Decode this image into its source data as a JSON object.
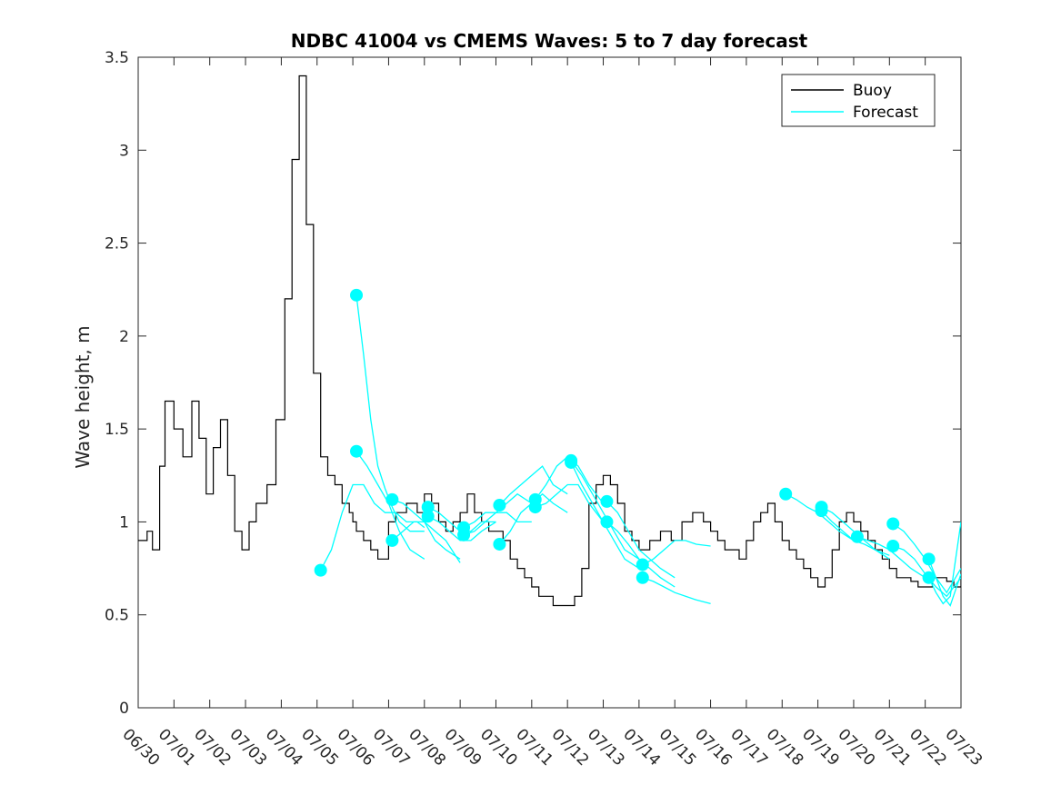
{
  "chart_data": {
    "type": "line",
    "title": "NDBC 41004 vs CMEMS Waves: 5 to 7 day forecast",
    "xlabel": "",
    "ylabel": "Wave height, m",
    "xlim": [
      "06/30",
      "07/23"
    ],
    "ylim": [
      0,
      3.5
    ],
    "x_tick_labels": [
      "06/30",
      "07/01",
      "07/02",
      "07/03",
      "07/04",
      "07/05",
      "07/06",
      "07/07",
      "07/08",
      "07/09",
      "07/10",
      "07/11",
      "07/12",
      "07/13",
      "07/14",
      "07/15",
      "07/16",
      "07/17",
      "07/18",
      "07/19",
      "07/20",
      "07/21",
      "07/22",
      "07/23"
    ],
    "y_tick_labels": [
      "0",
      "0.5",
      "1",
      "1.5",
      "2",
      "2.5",
      "3",
      "3.5"
    ],
    "grid": false,
    "legend_position": "top-right",
    "colors": {
      "buoy": "#000000",
      "forecast": "#00ffff"
    },
    "series": [
      {
        "name": "Buoy",
        "x_days": [
          0,
          0.25,
          0.4,
          0.6,
          0.75,
          1.0,
          1.25,
          1.5,
          1.7,
          1.9,
          2.1,
          2.3,
          2.5,
          2.7,
          2.9,
          3.1,
          3.3,
          3.6,
          3.85,
          4.1,
          4.3,
          4.5,
          4.7,
          4.9,
          5.1,
          5.3,
          5.5,
          5.7,
          5.9,
          6.0,
          6.1,
          6.3,
          6.5,
          6.7,
          7.0,
          7.2,
          7.5,
          7.8,
          8.0,
          8.2,
          8.4,
          8.6,
          8.8,
          9.0,
          9.2,
          9.4,
          9.6,
          9.8,
          10.0,
          10.2,
          10.4,
          10.6,
          10.8,
          11.0,
          11.2,
          11.4,
          11.6,
          11.8,
          12.0,
          12.2,
          12.4,
          12.6,
          12.8,
          13.0,
          13.2,
          13.4,
          13.6,
          13.8,
          14.0,
          14.3,
          14.6,
          14.9,
          15.2,
          15.5,
          15.8,
          16.0,
          16.2,
          16.4,
          16.6,
          16.8,
          17.0,
          17.2,
          17.4,
          17.6,
          17.8,
          18.0,
          18.2,
          18.4,
          18.6,
          18.8,
          19.0,
          19.2,
          19.4,
          19.6,
          19.8,
          20.0,
          20.2,
          20.4,
          20.6,
          20.8,
          21.0,
          21.2,
          21.4,
          21.6,
          21.8,
          22.0,
          22.2,
          22.4,
          22.6,
          22.8,
          23.0
        ],
        "values": [
          0.9,
          0.95,
          0.85,
          1.3,
          1.65,
          1.5,
          1.35,
          1.65,
          1.45,
          1.15,
          1.4,
          1.55,
          1.25,
          0.95,
          0.85,
          1.0,
          1.1,
          1.2,
          1.55,
          2.2,
          2.95,
          3.4,
          2.6,
          1.8,
          1.35,
          1.25,
          1.2,
          1.1,
          1.05,
          1.0,
          0.95,
          0.9,
          0.85,
          0.8,
          1.0,
          1.05,
          1.1,
          1.05,
          1.15,
          1.1,
          1.0,
          0.95,
          1.0,
          1.05,
          1.15,
          1.05,
          1.0,
          0.95,
          0.95,
          0.9,
          0.8,
          0.75,
          0.7,
          0.65,
          0.6,
          0.6,
          0.55,
          0.55,
          0.55,
          0.6,
          0.75,
          1.1,
          1.2,
          1.25,
          1.2,
          1.1,
          0.95,
          0.9,
          0.85,
          0.9,
          0.95,
          0.9,
          1.0,
          1.05,
          1.0,
          0.95,
          0.9,
          0.85,
          0.85,
          0.8,
          0.9,
          1.0,
          1.05,
          1.1,
          1.0,
          0.9,
          0.85,
          0.8,
          0.75,
          0.7,
          0.65,
          0.7,
          0.85,
          1.0,
          1.05,
          1.0,
          0.95,
          0.9,
          0.85,
          0.8,
          0.75,
          0.7,
          0.7,
          0.68,
          0.65,
          0.65,
          0.7,
          0.7,
          0.68,
          0.65,
          1.0
        ]
      },
      {
        "name": "Forecast",
        "x_days": [
          5.1,
          5.4,
          5.7,
          6.0,
          6.3,
          6.6,
          6.9,
          7.2,
          7.5,
          7.8,
          8.0
        ],
        "values": [
          0.74,
          0.85,
          1.05,
          1.2,
          1.2,
          1.1,
          1.05,
          1.05,
          1.0,
          1.0,
          0.97
        ]
      },
      {
        "x_days": [
          6.1,
          6.3,
          6.5,
          6.7,
          6.9,
          7.1,
          7.3,
          7.6,
          8.0
        ],
        "values": [
          2.22,
          1.9,
          1.55,
          1.3,
          1.18,
          1.08,
          1.0,
          0.95,
          0.95
        ]
      },
      {
        "x_days": [
          6.1,
          6.4,
          6.7,
          7.0,
          7.3,
          7.6,
          8.0
        ],
        "values": [
          1.38,
          1.3,
          1.2,
          1.1,
          0.95,
          0.85,
          0.8
        ]
      },
      {
        "x_days": [
          7.1,
          7.4,
          7.7,
          8.0,
          8.3,
          8.6,
          9.0
        ],
        "values": [
          1.12,
          1.1,
          1.05,
          1.0,
          0.9,
          0.85,
          0.8
        ]
      },
      {
        "x_days": [
          7.1,
          7.4,
          7.7,
          8.0,
          8.3,
          8.6,
          9.0
        ],
        "values": [
          0.9,
          0.95,
          1.0,
          1.0,
          0.95,
          0.9,
          0.78
        ]
      },
      {
        "x_days": [
          8.1,
          8.4,
          8.7,
          9.0,
          9.3,
          9.6,
          10.0
        ],
        "values": [
          1.08,
          1.05,
          1.0,
          0.95,
          0.95,
          1.0,
          1.0
        ]
      },
      {
        "x_days": [
          8.1,
          8.4,
          8.7,
          9.0,
          9.3,
          9.6,
          10.0
        ],
        "values": [
          1.03,
          1.0,
          0.95,
          0.9,
          0.9,
          0.95,
          1.0
        ]
      },
      {
        "x_days": [
          9.1,
          9.4,
          9.7,
          10.0,
          10.3,
          10.6,
          11.0
        ],
        "values": [
          0.97,
          1.0,
          1.05,
          1.05,
          1.1,
          1.15,
          1.1
        ]
      },
      {
        "x_days": [
          9.1,
          9.4,
          9.7,
          10.0,
          10.3,
          10.6,
          11.0
        ],
        "values": [
          0.93,
          0.95,
          1.0,
          1.05,
          1.05,
          1.0,
          1.0
        ]
      },
      {
        "x_days": [
          10.1,
          10.4,
          10.7,
          11.0,
          11.3,
          11.6,
          12.0
        ],
        "values": [
          1.09,
          1.15,
          1.2,
          1.25,
          1.3,
          1.2,
          1.15
        ]
      },
      {
        "x_days": [
          10.1,
          10.4,
          10.7,
          11.0,
          11.3,
          11.6,
          12.0
        ],
        "values": [
          0.88,
          0.95,
          1.05,
          1.1,
          1.15,
          1.1,
          1.05
        ]
      },
      {
        "x_days": [
          11.1,
          11.4,
          11.7,
          12.0,
          12.3,
          12.6,
          13.0
        ],
        "values": [
          1.12,
          1.2,
          1.3,
          1.35,
          1.3,
          1.2,
          1.1
        ]
      },
      {
        "x_days": [
          11.1,
          11.4,
          11.7,
          12.0,
          12.3,
          12.6,
          13.0
        ],
        "values": [
          1.08,
          1.1,
          1.15,
          1.2,
          1.2,
          1.1,
          1.0
        ]
      },
      {
        "x_days": [
          12.1,
          12.4,
          12.7,
          13.0,
          13.3,
          13.6,
          14.0
        ],
        "values": [
          1.33,
          1.25,
          1.15,
          1.05,
          0.95,
          0.85,
          0.8
        ]
      },
      {
        "x_days": [
          12.1,
          12.4,
          12.7,
          13.0,
          13.3,
          13.6,
          14.0
        ],
        "values": [
          1.32,
          1.2,
          1.1,
          1.0,
          0.9,
          0.8,
          0.75
        ]
      },
      {
        "x_days": [
          13.1,
          13.4,
          13.7,
          14.0,
          14.3,
          14.6,
          15.0
        ],
        "values": [
          1.11,
          1.05,
          0.95,
          0.85,
          0.8,
          0.75,
          0.7
        ]
      },
      {
        "x_days": [
          13.1,
          13.4,
          13.7,
          14.0,
          14.3,
          14.6,
          15.0
        ],
        "values": [
          1.0,
          0.95,
          0.88,
          0.8,
          0.75,
          0.7,
          0.65
        ]
      },
      {
        "x_days": [
          14.1,
          14.4,
          14.7,
          15.0,
          15.3,
          15.6,
          16.0
        ],
        "values": [
          0.77,
          0.8,
          0.85,
          0.9,
          0.9,
          0.88,
          0.87
        ]
      },
      {
        "x_days": [
          14.1,
          14.4,
          14.7,
          15.0,
          15.3,
          15.6,
          16.0
        ],
        "values": [
          0.7,
          0.68,
          0.65,
          0.62,
          0.6,
          0.58,
          0.56
        ]
      },
      {
        "x_days": [
          18.1,
          18.4,
          18.7,
          19.0,
          19.3,
          19.6,
          20.0
        ],
        "values": [
          1.15,
          1.12,
          1.08,
          1.05,
          1.0,
          0.95,
          0.9
        ]
      },
      {
        "x_days": [
          19.1,
          19.4,
          19.7,
          20.0,
          20.3,
          20.6,
          21.0
        ],
        "values": [
          1.08,
          1.05,
          1.0,
          0.95,
          0.9,
          0.85,
          0.8
        ]
      },
      {
        "x_days": [
          19.1,
          19.4,
          19.7,
          20.0,
          20.3,
          20.6,
          21.0
        ],
        "values": [
          1.06,
          1.0,
          0.95,
          0.9,
          0.88,
          0.85,
          0.82
        ]
      },
      {
        "x_days": [
          20.1,
          20.4,
          20.7,
          21.0,
          21.3,
          21.6,
          22.0
        ],
        "values": [
          0.92,
          0.9,
          0.88,
          0.85,
          0.8,
          0.75,
          0.7
        ]
      },
      {
        "x_days": [
          21.1,
          21.4,
          21.7,
          22.0,
          22.3,
          22.6,
          23.0
        ],
        "values": [
          0.99,
          0.95,
          0.88,
          0.8,
          0.7,
          0.62,
          0.75
        ]
      },
      {
        "x_days": [
          21.1,
          21.4,
          21.7,
          22.0,
          22.3,
          22.6,
          23.0
        ],
        "values": [
          0.87,
          0.85,
          0.8,
          0.72,
          0.65,
          0.6,
          0.7
        ]
      },
      {
        "x_days": [
          22.1,
          22.3,
          22.5,
          22.7,
          23.0
        ],
        "values": [
          0.8,
          0.7,
          0.6,
          0.55,
          0.72
        ]
      },
      {
        "x_days": [
          22.1,
          22.3,
          22.5,
          22.7,
          23.0
        ],
        "values": [
          0.7,
          0.62,
          0.56,
          0.6,
          1.0
        ]
      }
    ],
    "forecast_markers": {
      "x_days": [
        5.1,
        6.1,
        6.1,
        7.1,
        7.1,
        8.1,
        8.1,
        9.1,
        9.1,
        10.1,
        10.1,
        11.1,
        11.1,
        12.1,
        12.1,
        13.1,
        13.1,
        14.1,
        14.1,
        18.1,
        19.1,
        19.1,
        20.1,
        21.1,
        21.1,
        22.1,
        22.1
      ],
      "values": [
        0.74,
        2.22,
        1.38,
        1.12,
        0.9,
        1.08,
        1.03,
        0.97,
        0.93,
        1.09,
        0.88,
        1.12,
        1.08,
        1.33,
        1.32,
        1.11,
        1.0,
        0.77,
        0.7,
        1.15,
        1.08,
        1.06,
        0.92,
        0.99,
        0.87,
        0.8,
        0.7
      ]
    },
    "legend": [
      {
        "label": "Buoy",
        "color": "#000000"
      },
      {
        "label": "Forecast",
        "color": "#00ffff"
      }
    ]
  }
}
